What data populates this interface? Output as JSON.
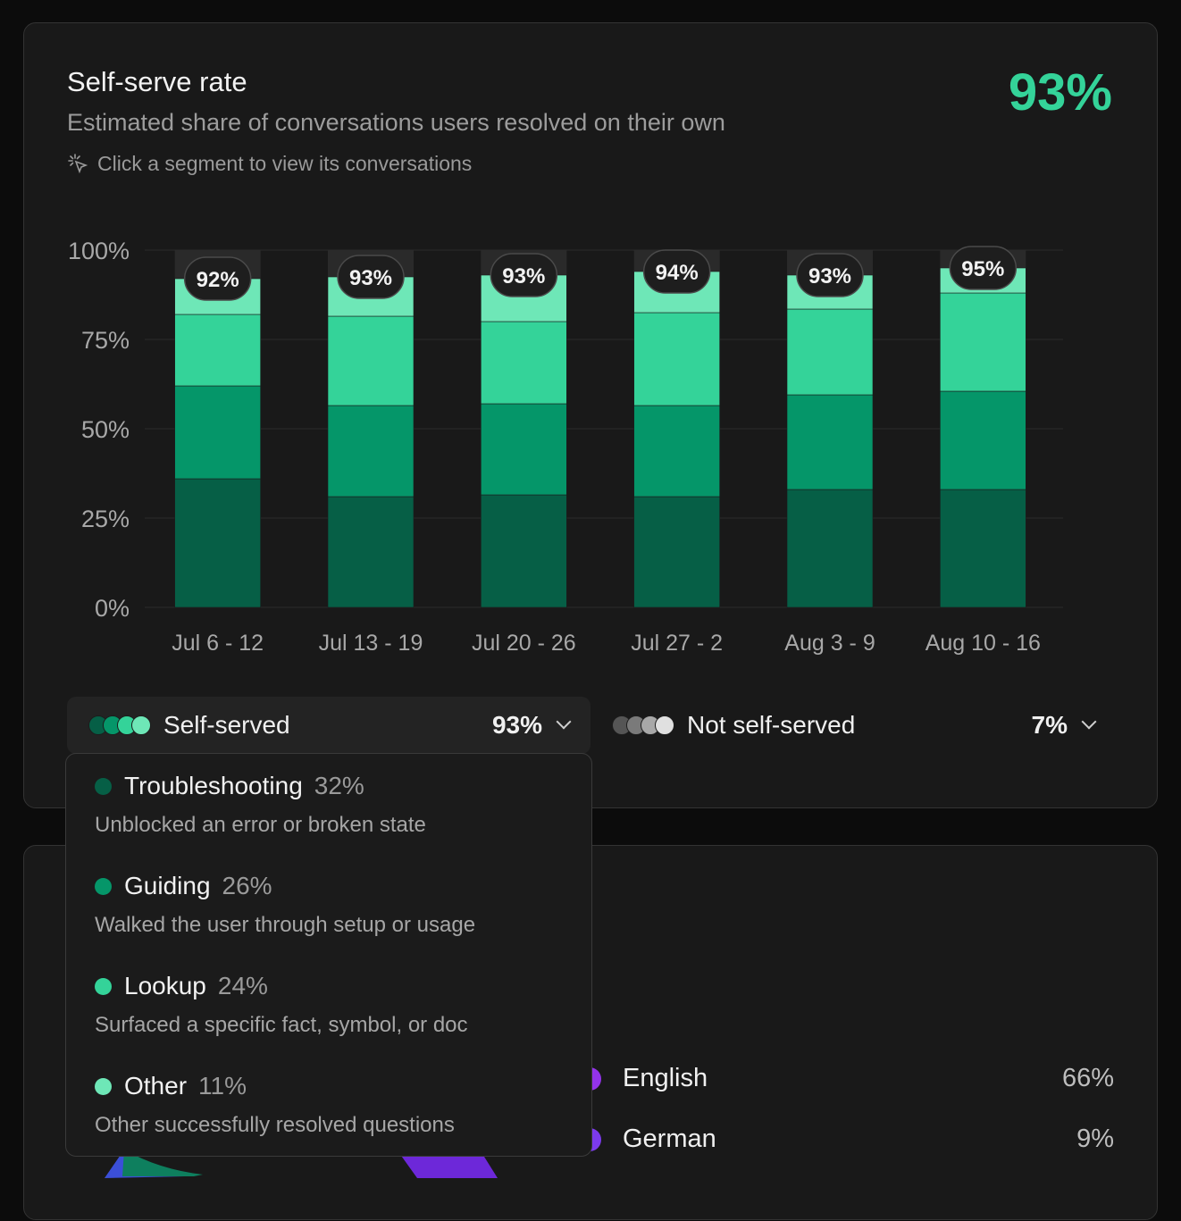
{
  "header": {
    "title": "Self-serve rate",
    "subtitle": "Estimated share of conversations users resolved on their own",
    "hint": "Click a segment to view its conversations",
    "rate": "93%"
  },
  "colors": {
    "troubleshooting": "#065f46",
    "guiding": "#059669",
    "lookup": "#34d399",
    "other": "#6ee7b7",
    "not_self_served": "#2a2a2a",
    "accent": "#34d399"
  },
  "chart_data": {
    "type": "bar",
    "stacked": true,
    "categories": [
      "Jul 6 - 12",
      "Jul 13 - 19",
      "Jul 20 - 26",
      "Jul 27 - 2",
      "Aug 3 - 9",
      "Aug 10 - 16"
    ],
    "series": [
      {
        "name": "Troubleshooting",
        "values": [
          36,
          31,
          31.5,
          31,
          33,
          33
        ]
      },
      {
        "name": "Guiding",
        "values": [
          26,
          25.5,
          25.5,
          25.5,
          26.5,
          27.5
        ]
      },
      {
        "name": "Lookup",
        "values": [
          20,
          25,
          23,
          26,
          24,
          27.5
        ]
      },
      {
        "name": "Other",
        "values": [
          10,
          11,
          13,
          11.5,
          9.5,
          7
        ]
      }
    ],
    "totals_labels": [
      "92%",
      "93%",
      "93%",
      "94%",
      "93%",
      "95%"
    ],
    "y_ticks": [
      "100%",
      "75%",
      "50%",
      "25%",
      "0%"
    ],
    "ylim": [
      0,
      100
    ],
    "grid": true
  },
  "legend": {
    "self_served": {
      "label": "Self-served",
      "value": "93%"
    },
    "not_self_served": {
      "label": "Not self-served",
      "value": "7%"
    }
  },
  "dropdown": [
    {
      "name": "Troubleshooting",
      "pct": "32%",
      "desc": "Unblocked an error or broken state"
    },
    {
      "name": "Guiding",
      "pct": "26%",
      "desc": "Walked the user through setup or usage"
    },
    {
      "name": "Lookup",
      "pct": "24%",
      "desc": "Surfaced a specific fact, symbol, or doc"
    },
    {
      "name": "Other",
      "pct": "11%",
      "desc": "Other successfully resolved questions"
    }
  ],
  "languages": [
    {
      "name": "English",
      "value": "66%",
      "color": "#9333ea"
    },
    {
      "name": "German",
      "value": "9%",
      "color": "#7c3aed"
    }
  ]
}
